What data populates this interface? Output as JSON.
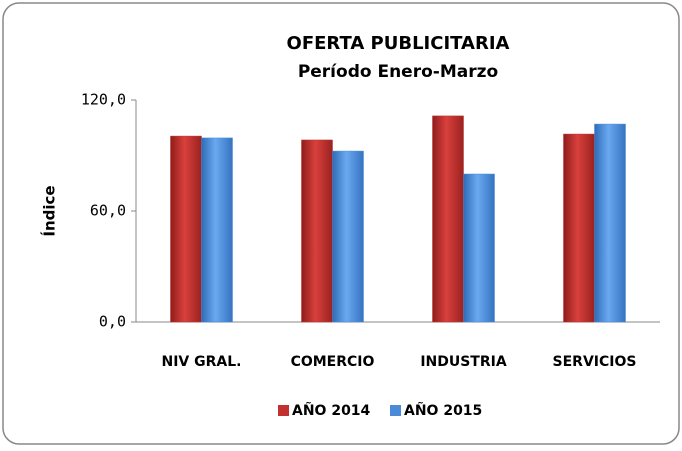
{
  "chart_data": {
    "type": "bar",
    "title": "OFERTA PUBLICITARIA",
    "subtitle": "Período Enero-Marzo",
    "y_label": "Índice",
    "categories": [
      "NIV GRAL.",
      "COMERCIO",
      "INDUSTRIA",
      "SERVICIOS"
    ],
    "series": [
      {
        "name": "AÑO 2014",
        "color": "#c0312f",
        "values": [
          100.5,
          98.4,
          111.4,
          101.6
        ]
      },
      {
        "name": "AÑO 2015",
        "color": "#4a8ad8",
        "values": [
          99.5,
          92.4,
          80,
          107
        ]
      }
    ],
    "ylim": [
      0,
      120
    ],
    "yticks": [
      {
        "value": 0,
        "label": "0,0"
      },
      {
        "value": 60,
        "label": "60,0"
      },
      {
        "value": 120,
        "label": "120,0"
      }
    ],
    "grid": false,
    "legend": "bottom"
  }
}
